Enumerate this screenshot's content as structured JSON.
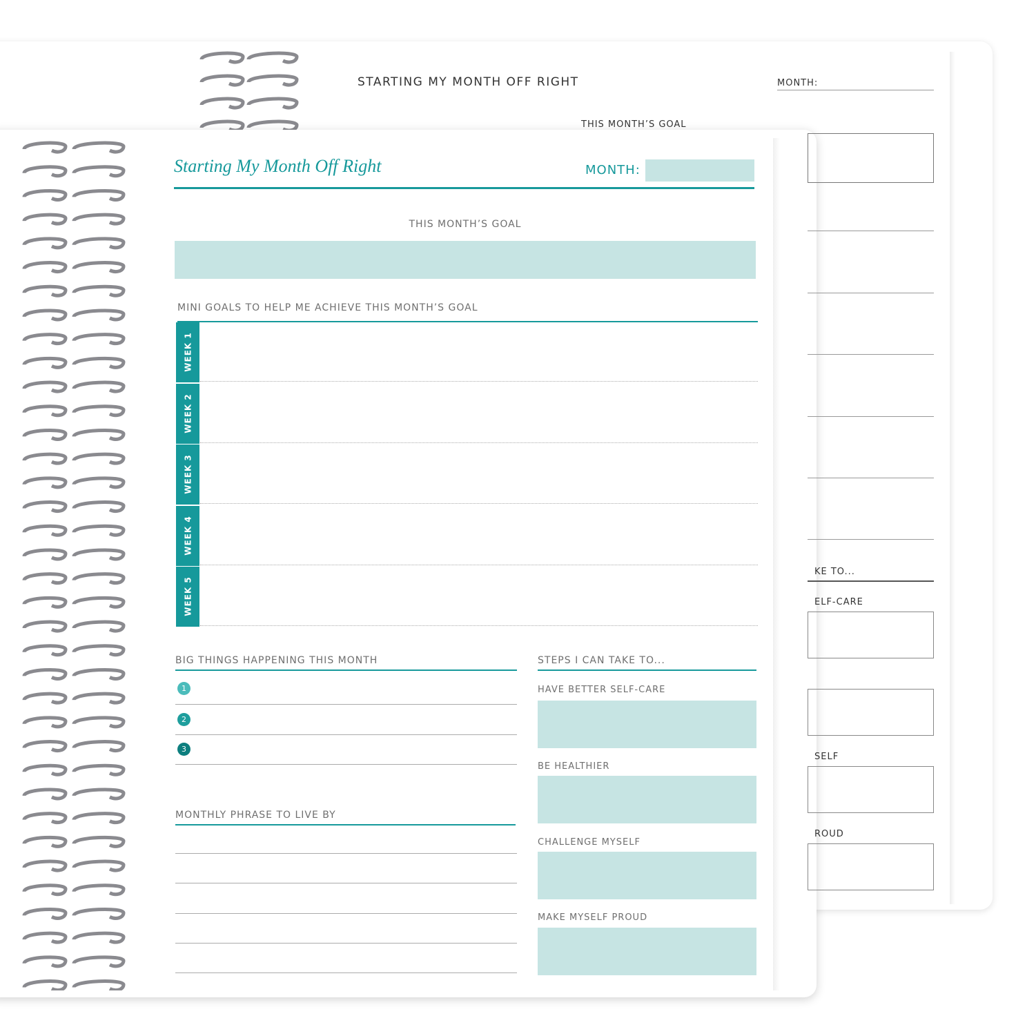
{
  "back_page": {
    "title": "STARTING MY MONTH OFF RIGHT",
    "month_label": "MONTH:",
    "goal_label": "THIS MONTH’S GOAL",
    "partial_labels": [
      "KE TO...",
      "ELF-CARE",
      "SELF",
      "ROUD"
    ]
  },
  "front_page": {
    "title": "Starting My Month Off Right",
    "month_label": "MONTH:",
    "goal_label": "THIS MONTH’S GOAL",
    "mini_goals": {
      "heading": "MINI GOALS TO HELP ME ACHIEVE THIS MONTH’S GOAL",
      "weeks": [
        "WEEK 1",
        "WEEK 2",
        "WEEK 3",
        "WEEK 4",
        "WEEK 5"
      ]
    },
    "big_things": {
      "heading": "BIG THINGS HAPPENING THIS MONTH",
      "items": [
        "1",
        "2",
        "3"
      ]
    },
    "phrase": {
      "heading": "MONTHLY PHRASE TO LIVE BY"
    },
    "steps": {
      "heading": "STEPS I CAN TAKE TO...",
      "items": [
        "HAVE BETTER SELF-CARE",
        "BE HEALTHIER",
        "CHALLENGE MYSELF",
        "MAKE MYSELF PROUD"
      ]
    }
  }
}
